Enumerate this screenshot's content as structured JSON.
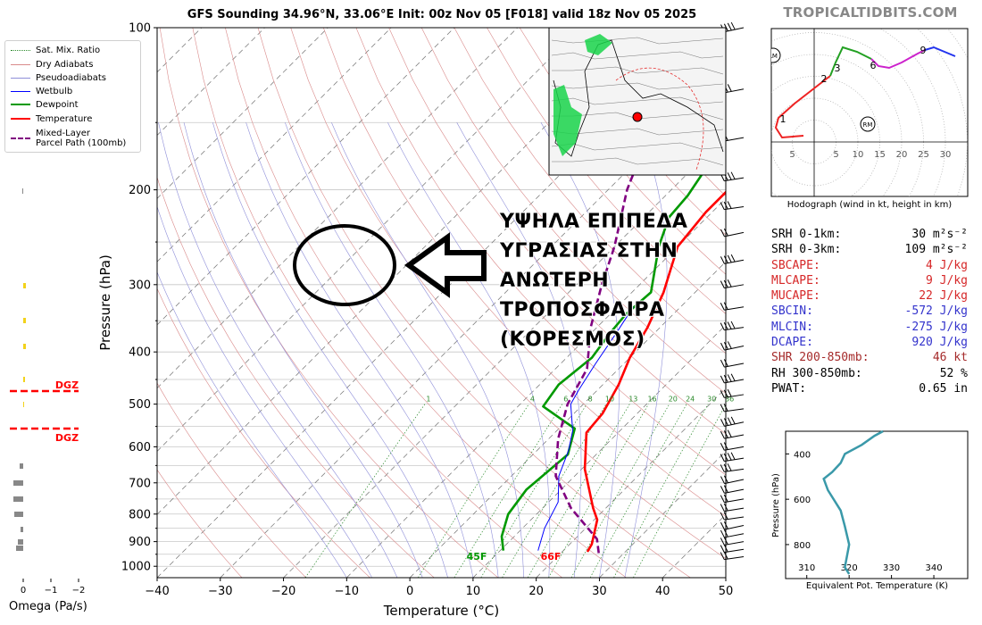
{
  "title": "GFS Sounding 34.96°N, 33.06°E Init: 00z Nov 05 [F018] valid 18z Nov 05 2025",
  "site": "TROPICALTIDBITS.COM",
  "legend": [
    {
      "label": "Sat. Mix. Ratio",
      "color": "#2e8b2e",
      "style": "dotted"
    },
    {
      "label": "Dry Adiabats",
      "color": "#d98a8a",
      "style": "solid"
    },
    {
      "label": "Pseudoadiabats",
      "color": "#8f8fd9",
      "style": "solid"
    },
    {
      "label": "Wetbulb",
      "color": "#0000ff",
      "style": "solid"
    },
    {
      "label": "Dewpoint",
      "color": "#009900",
      "style": "solid"
    },
    {
      "label": "Temperature",
      "color": "#ff0000",
      "style": "solid"
    },
    {
      "label": "Mixed-Layer\nParcel Path (100mb)",
      "color": "#800080",
      "style": "dashed"
    }
  ],
  "annotation": [
    "ΥΨΗΛΑ ΕΠΙΠΕΔΑ",
    "ΥΓΡΑΣΙΑΣ ΣΤΗΝ",
    "ΑΝΩΤΕΡΗ",
    "ΤΡΟΠΟΣΦΑΙΡΑ",
    "(ΚΟΡΕΣΜΟΣ)"
  ],
  "indices": [
    {
      "label": "SRH 0-1km:",
      "value": "30 m²s⁻²",
      "color": "#000000"
    },
    {
      "label": "SRH 0-3km:",
      "value": "109 m²s⁻²",
      "color": "#000000"
    },
    {
      "label": "SBCAPE:",
      "value": "4 J/kg",
      "color": "#d62728"
    },
    {
      "label": "MLCAPE:",
      "value": "9 J/kg",
      "color": "#d62728"
    },
    {
      "label": "MUCAPE:",
      "value": "22 J/kg",
      "color": "#d62728"
    },
    {
      "label": "SBCIN:",
      "value": "-572 J/kg",
      "color": "#3333cc"
    },
    {
      "label": "MLCIN:",
      "value": "-275 J/kg",
      "color": "#3333cc"
    },
    {
      "label": "DCAPE:",
      "value": "920 J/kg",
      "color": "#3333cc"
    },
    {
      "label": "SHR 200-850mb:",
      "value": "46 kt",
      "color": "#a52a2a"
    },
    {
      "label": "RH 300-850mb:",
      "value": "52 %",
      "color": "#000000"
    },
    {
      "label": "PWAT:",
      "value": "0.65 in",
      "color": "#000000"
    }
  ],
  "hodograph": {
    "caption": "Hodograph (wind in kt, height in km)",
    "ring_labels": [
      "5",
      "5",
      "10",
      "15",
      "20",
      "25",
      "30"
    ],
    "height_labels": [
      "1",
      "2",
      "3",
      "6",
      "9"
    ],
    "markers": [
      "LM",
      "RM"
    ]
  },
  "omega": {
    "xlabel": "Omega (Pa/s)",
    "ticks": [
      "0",
      "−1",
      "−2"
    ],
    "dgz_label": "DGZ"
  },
  "surface_labels": {
    "dewpoint": "45F",
    "temperature": "66F"
  },
  "mixing_ratio_labels": [
    "1",
    "4",
    "6",
    "8",
    "10",
    "13",
    "16",
    "20",
    "24",
    "30",
    "36"
  ],
  "theta_e_panel": {
    "xlabel": "Equivalent Pot. Temperature (K)",
    "ylabel": "Pressure (hPa)",
    "x_ticks": [
      "310",
      "320",
      "330",
      "340"
    ],
    "y_ticks": [
      "400",
      "600",
      "800"
    ],
    "xlim": [
      305,
      348
    ],
    "ylim": [
      950,
      300
    ],
    "profile": [
      [
        320,
        930
      ],
      [
        319,
        900
      ],
      [
        320,
        800
      ],
      [
        319,
        720
      ],
      [
        318,
        650
      ],
      [
        315,
        560
      ],
      [
        314,
        510
      ],
      [
        316,
        480
      ],
      [
        318,
        440
      ],
      [
        319,
        400
      ],
      [
        323,
        360
      ],
      [
        326,
        320
      ],
      [
        328,
        300
      ]
    ]
  },
  "chart_data": {
    "type": "line",
    "title": "GFS Sounding 34.96°N, 33.06°E Init: 00z Nov 05 [F018] valid 18z Nov 05 2025",
    "xlabel": "Temperature (°C)",
    "ylabel": "Pressure (hPa)",
    "xlim": [
      -40,
      50
    ],
    "ylim": [
      1050,
      100
    ],
    "x_ticks": [
      "−40",
      "−30",
      "−20",
      "−10",
      "0",
      "10",
      "20",
      "30",
      "40",
      "50"
    ],
    "y_ticks": [
      "100",
      "200",
      "300",
      "400",
      "500",
      "600",
      "700",
      "800",
      "900",
      "1000"
    ],
    "series": [
      {
        "name": "Temperature",
        "color": "#ff0000",
        "points": [
          [
            24,
            940
          ],
          [
            23.5,
            910
          ],
          [
            20.5,
            820
          ],
          [
            18,
            780
          ],
          [
            10.5,
            660
          ],
          [
            5,
            565
          ],
          [
            4.5,
            520
          ],
          [
            2.5,
            460
          ],
          [
            0,
            410
          ],
          [
            -2,
            360
          ],
          [
            -5,
            310
          ],
          [
            -10,
            255
          ],
          [
            -11,
            220
          ],
          [
            -11,
            190
          ],
          [
            -9,
            150
          ],
          [
            -6,
            100
          ]
        ]
      },
      {
        "name": "Dewpoint",
        "color": "#009900",
        "points": [
          [
            10.5,
            935
          ],
          [
            8,
            880
          ],
          [
            5.5,
            800
          ],
          [
            4.5,
            720
          ],
          [
            5.5,
            620
          ],
          [
            2.5,
            555
          ],
          [
            -6,
            505
          ],
          [
            -7,
            460
          ],
          [
            -6,
            410
          ],
          [
            -7,
            370
          ],
          [
            -7.5,
            340
          ],
          [
            -7,
            310
          ],
          [
            -13,
            255
          ],
          [
            -16,
            225
          ],
          [
            -16.5,
            205
          ],
          [
            -19.5,
            160
          ],
          [
            -20,
            130
          ],
          [
            -15,
            100
          ]
        ]
      },
      {
        "name": "Wetbulb",
        "color": "#0000ff",
        "points": [
          [
            16,
            935
          ],
          [
            13.5,
            850
          ],
          [
            11.5,
            760
          ],
          [
            7.5,
            680
          ],
          [
            5,
            610
          ],
          [
            2.5,
            560
          ],
          [
            -2,
            500
          ],
          [
            -3,
            470
          ],
          [
            -4.5,
            420
          ],
          [
            -6,
            370
          ],
          [
            -7.5,
            330
          ]
        ]
      },
      {
        "name": "Mixed-Layer Parcel Path (100mb)",
        "color": "#800080",
        "points": [
          [
            26,
            945
          ],
          [
            23.5,
            890
          ],
          [
            14.5,
            780
          ],
          [
            7,
            680
          ],
          [
            1.5,
            580
          ],
          [
            -2.5,
            500
          ],
          [
            -5,
            430
          ],
          [
            -11,
            360
          ],
          [
            -16,
            300
          ],
          [
            -20,
            255
          ],
          [
            -27,
            200
          ],
          [
            -32,
            160
          ],
          [
            -40,
            120
          ]
        ]
      }
    ]
  }
}
